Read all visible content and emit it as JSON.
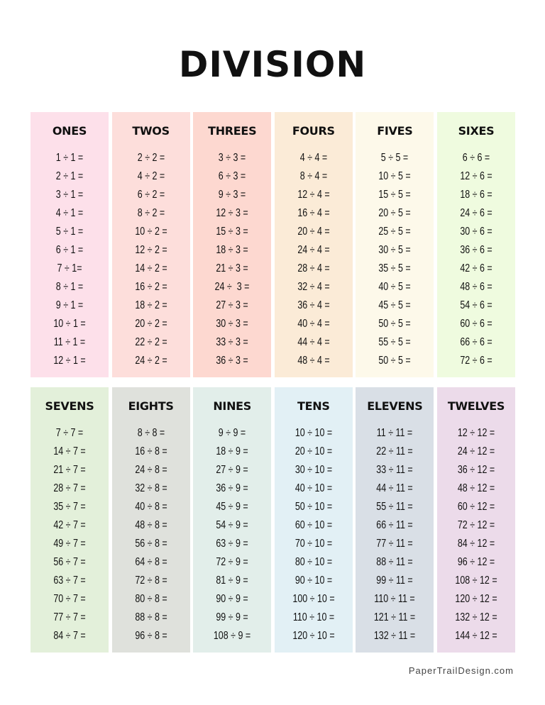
{
  "title": "DIVISION",
  "footer": "PaperTrailDesign.com",
  "columns": [
    {
      "title": "ONES",
      "color": "#fde0ea",
      "items": [
        "1 ÷ 1 =",
        "2 ÷ 1 =",
        "3 ÷ 1 =",
        "4 ÷ 1 =",
        "5 ÷ 1 =",
        "6 ÷ 1 =",
        "7 ÷ 1=",
        "8 ÷ 1 =",
        "9 ÷ 1 =",
        "10 ÷ 1 =",
        "11 ÷ 1 =",
        "12 ÷ 1 ="
      ]
    },
    {
      "title": "TWOS",
      "color": "#fddedb",
      "items": [
        "2 ÷ 2 =",
        "4 ÷ 2 =",
        "6 ÷ 2 =",
        "8 ÷ 2 =",
        "10 ÷ 2 =",
        "12 ÷ 2 =",
        "14 ÷ 2 =",
        "16 ÷ 2 =",
        "18 ÷ 2 =",
        "20 ÷ 2 =",
        "22 ÷ 2 =",
        "24 ÷ 2 ="
      ]
    },
    {
      "title": "THREES",
      "color": "#fdd8d0",
      "items": [
        "3 ÷ 3 =",
        "6 ÷ 3 =",
        "9 ÷ 3 =",
        "12 ÷ 3 =",
        "15 ÷ 3 =",
        "18 ÷ 3 =",
        "21 ÷ 3 =",
        "24 ÷  3 =",
        "27 ÷ 3 =",
        "30 ÷ 3 =",
        "33 ÷ 3 =",
        "36 ÷ 3 ="
      ]
    },
    {
      "title": "FOURS",
      "color": "#fbebd7",
      "items": [
        "4 ÷ 4 =",
        "8 ÷ 4 =",
        "12 ÷ 4 =",
        "16 ÷ 4 =",
        "20 ÷ 4 =",
        "24 ÷ 4 =",
        "28 ÷ 4 =",
        "32 ÷ 4 =",
        "36 ÷ 4 =",
        "40 ÷ 4 =",
        "44 ÷ 4 =",
        "48 ÷ 4 ="
      ]
    },
    {
      "title": "FIVES",
      "color": "#fdf9ea",
      "items": [
        "5 ÷ 5 =",
        "10 ÷ 5 =",
        "15 ÷ 5 =",
        "20 ÷ 5 =",
        "25 ÷ 5 =",
        "30 ÷ 5 =",
        "35 ÷ 5 =",
        "40 ÷ 5 =",
        "45 ÷ 5 =",
        "50 ÷ 5 =",
        "55 ÷ 5 =",
        "50 ÷ 5 ="
      ]
    },
    {
      "title": "SIXES",
      "color": "#effbdf",
      "items": [
        "6 ÷ 6 =",
        "12 ÷ 6 =",
        "18 ÷ 6 =",
        "24 ÷ 6 =",
        "30 ÷ 6 =",
        "36 ÷ 6 =",
        "42 ÷ 6 =",
        "48 ÷ 6 =",
        "54 ÷ 6 =",
        "60 ÷ 6 =",
        "66 ÷ 6 =",
        "72 ÷ 6 ="
      ]
    },
    {
      "title": "SEVENS",
      "color": "#e3f0da",
      "items": [
        "7 ÷ 7 =",
        "14 ÷ 7 =",
        "21 ÷ 7 =",
        "28 ÷ 7 =",
        "35 ÷ 7 =",
        "42 ÷ 7 =",
        "49 ÷ 7 =",
        "56 ÷ 7 =",
        "63 ÷ 7 =",
        "70 ÷ 7 =",
        "77 ÷ 7 =",
        "84 ÷ 7 ="
      ]
    },
    {
      "title": "EIGHTS",
      "color": "#dfe1dc",
      "items": [
        "8 ÷ 8 =",
        "16 ÷ 8 =",
        "24 ÷ 8 =",
        "32 ÷ 8 =",
        "40 ÷ 8 =",
        "48 ÷ 8 =",
        "56 ÷ 8 =",
        "64 ÷ 8 =",
        "72 ÷ 8 =",
        "80 ÷ 8 =",
        "88 ÷ 8 =",
        "96 ÷ 8 ="
      ]
    },
    {
      "title": "NINES",
      "color": "#e2eeea",
      "items": [
        "9 ÷ 9 =",
        "18 ÷ 9 =",
        "27 ÷ 9 =",
        "36 ÷ 9 =",
        "45 ÷ 9 =",
        "54 ÷ 9 =",
        "63 ÷ 9 =",
        "72 ÷ 9 =",
        "81 ÷ 9 =",
        "90 ÷ 9 =",
        "99 ÷ 9 =",
        "108 ÷ 9 ="
      ]
    },
    {
      "title": "TENS",
      "color": "#e2f0f5",
      "items": [
        "10 ÷ 10 =",
        "20 ÷ 10 =",
        "30 ÷ 10 =",
        "40 ÷ 10 =",
        "50 ÷ 10 =",
        "60 ÷ 10 =",
        "70 ÷ 10 =",
        "80 ÷ 10 =",
        "90 ÷ 10 =",
        "100 ÷ 10 =",
        "110 ÷ 10 =",
        "120 ÷ 10 ="
      ]
    },
    {
      "title": "ELEVENS",
      "color": "#d9dfe6",
      "items": [
        "11 ÷ 11 =",
        "22 ÷ 11 =",
        "33 ÷ 11 =",
        "44 ÷ 11 =",
        "55 ÷ 11 =",
        "66 ÷ 11 =",
        "77 ÷ 11 =",
        "88 ÷ 11 =",
        "99 ÷ 11 =",
        "110 ÷ 11 =",
        "121 ÷ 11 =",
        "132 ÷ 11 ="
      ]
    },
    {
      "title": "TWELVES",
      "color": "#ecdbea",
      "items": [
        "12 ÷ 12 =",
        "24 ÷ 12 =",
        "36 ÷ 12 =",
        "48 ÷ 12 =",
        "60 ÷ 12 =",
        "72 ÷ 12 =",
        "84 ÷ 12 =",
        "96 ÷ 12 =",
        "108 ÷ 12 =",
        "120 ÷ 12 =",
        "132 ÷ 12 =",
        "144 ÷ 12 ="
      ]
    }
  ]
}
